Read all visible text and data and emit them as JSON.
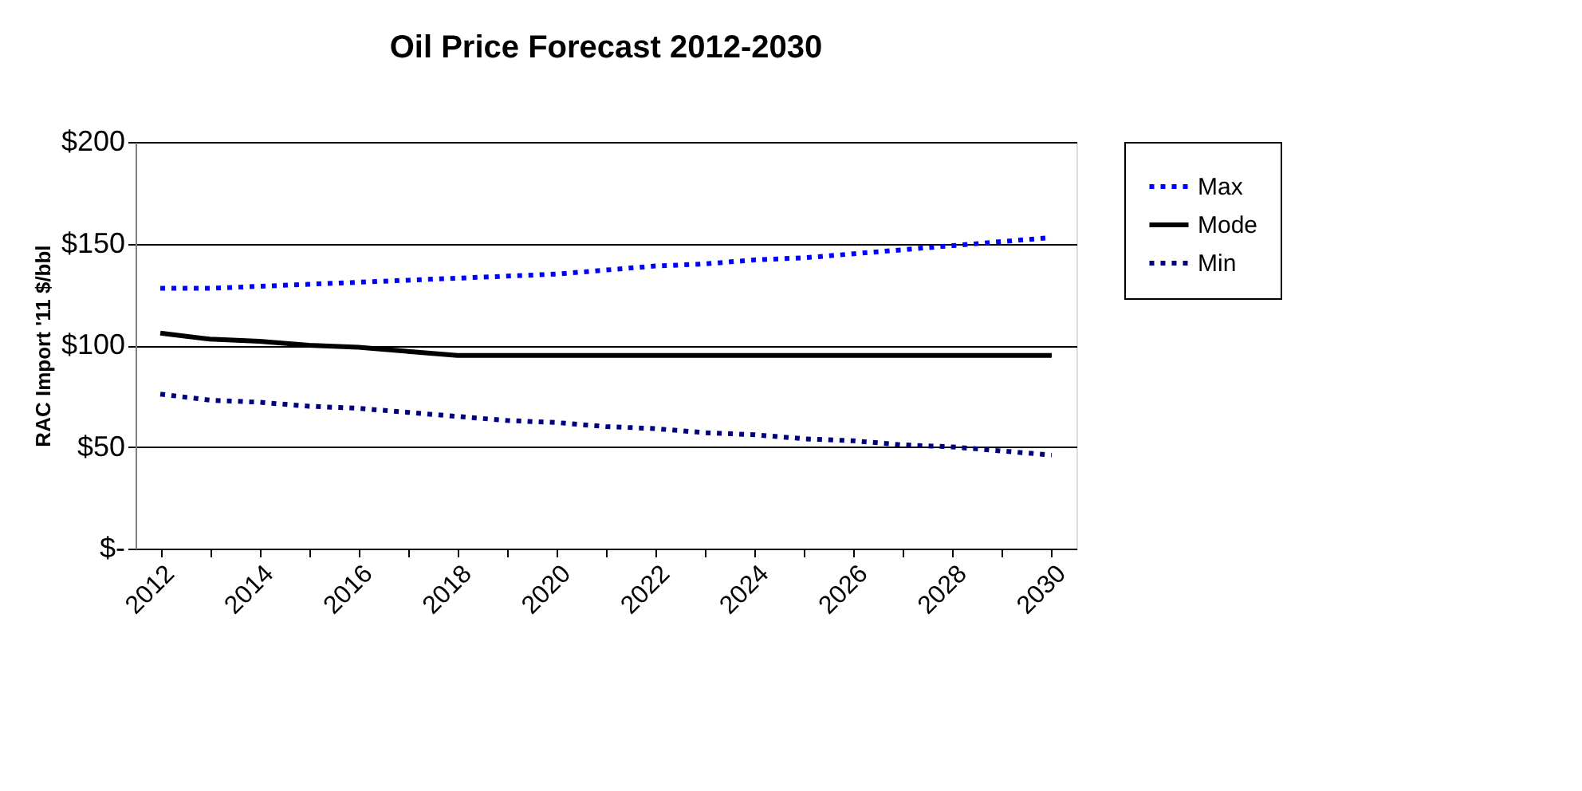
{
  "chart_data": {
    "type": "line",
    "title": "Oil Price Forecast 2012-2030",
    "ylabel": "RAC Import '11 $/bbl",
    "categories": [
      "2012",
      null,
      "2014",
      null,
      "2016",
      null,
      "2018",
      null,
      "2020",
      null,
      "2022",
      null,
      "2024",
      null,
      "2026",
      null,
      "2028",
      null,
      "2030"
    ],
    "series": [
      {
        "name": "Max",
        "color": "#0000ff",
        "line_style": "dotted",
        "values": [
          128,
          128,
          129,
          130,
          131,
          132,
          133,
          134,
          135,
          137,
          139,
          140,
          142,
          143,
          145,
          147,
          149,
          151,
          153
        ]
      },
      {
        "name": "Mode",
        "color": "#000000",
        "line_style": "solid",
        "values": [
          106,
          103,
          102,
          100,
          99,
          97,
          95,
          95,
          95,
          95,
          95,
          95,
          95,
          95,
          95,
          95,
          95,
          95,
          95
        ]
      },
      {
        "name": "Min",
        "color": "#000080",
        "line_style": "dotted",
        "values": [
          76,
          73,
          72,
          70,
          69,
          67,
          65,
          63,
          62,
          60,
          59,
          57,
          56,
          54,
          53,
          51,
          50,
          48,
          46
        ]
      }
    ],
    "ylim": [
      0,
      200
    ],
    "yticks": [
      {
        "value": 0,
        "label": "$-"
      },
      {
        "value": 50,
        "label": "$50"
      },
      {
        "value": 100,
        "label": "$100"
      },
      {
        "value": 150,
        "label": "$150"
      },
      {
        "value": 200,
        "label": "$200"
      }
    ],
    "grid": "y",
    "legend": "right"
  }
}
